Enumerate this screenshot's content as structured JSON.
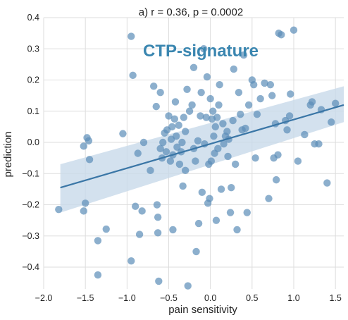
{
  "chart_data": {
    "type": "scatter",
    "title": "a) r = 0.36, p = 0.0002",
    "overlay_title": "CTP-signature",
    "xlabel": "pain sensitivity",
    "ylabel": "prediction",
    "xlim": [
      -2.0,
      1.6
    ],
    "ylim": [
      -0.47,
      0.4
    ],
    "xticks": [
      -2.0,
      -1.5,
      -1.0,
      -0.5,
      0.0,
      0.5,
      1.0,
      1.5
    ],
    "xtick_labels": [
      "−2.0",
      "−1.5",
      "−1.0",
      "−0.5",
      "0.0",
      "0.5",
      "1.0",
      "1.5"
    ],
    "yticks": [
      -0.4,
      -0.3,
      -0.2,
      -0.1,
      0.0,
      0.1,
      0.2,
      0.3,
      0.4
    ],
    "ytick_labels": [
      "−0.4",
      "−0.3",
      "−0.2",
      "−0.1",
      "0.0",
      "0.1",
      "0.2",
      "0.3",
      "0.4"
    ],
    "grid": true,
    "point_color": "#5b8db8",
    "line_color": "#3a76a6",
    "band_color": "#c8d9ea",
    "regression": {
      "x": [
        -1.8,
        1.6
      ],
      "y": [
        -0.145,
        0.12
      ],
      "ci_lower": [
        -0.225,
        0.065
      ],
      "ci_upper": [
        -0.07,
        0.18
      ]
    },
    "points": [
      {
        "x": -1.82,
        "y": -0.215
      },
      {
        "x": -1.52,
        "y": -0.012
      },
      {
        "x": -1.48,
        "y": 0.015
      },
      {
        "x": -1.46,
        "y": 0.005
      },
      {
        "x": -1.5,
        "y": -0.195
      },
      {
        "x": -1.52,
        "y": -0.22
      },
      {
        "x": -1.45,
        "y": -0.055
      },
      {
        "x": -1.35,
        "y": -0.315
      },
      {
        "x": -1.35,
        "y": -0.425
      },
      {
        "x": -1.25,
        "y": -0.278
      },
      {
        "x": -1.05,
        "y": 0.028
      },
      {
        "x": -0.95,
        "y": 0.34
      },
      {
        "x": -0.95,
        "y": -0.38
      },
      {
        "x": -0.93,
        "y": 0.215
      },
      {
        "x": -0.9,
        "y": -0.205
      },
      {
        "x": -0.87,
        "y": -0.035
      },
      {
        "x": -0.85,
        "y": -0.295
      },
      {
        "x": -0.82,
        "y": -0.22
      },
      {
        "x": -0.8,
        "y": 0.0
      },
      {
        "x": -0.72,
        "y": -0.09
      },
      {
        "x": -0.68,
        "y": 0.18
      },
      {
        "x": -0.65,
        "y": 0.115
      },
      {
        "x": -0.64,
        "y": -0.2
      },
      {
        "x": -0.63,
        "y": -0.24
      },
      {
        "x": -0.63,
        "y": -0.29
      },
      {
        "x": -0.62,
        "y": -0.445
      },
      {
        "x": -0.6,
        "y": -0.02
      },
      {
        "x": -0.6,
        "y": 0.16
      },
      {
        "x": -0.58,
        "y": -0.05
      },
      {
        "x": -0.57,
        "y": 0.0
      },
      {
        "x": -0.55,
        "y": 0.03
      },
      {
        "x": -0.53,
        "y": -0.03
      },
      {
        "x": -0.52,
        "y": 0.04
      },
      {
        "x": -0.5,
        "y": 0.085
      },
      {
        "x": -0.48,
        "y": -0.06
      },
      {
        "x": -0.47,
        "y": 0.01
      },
      {
        "x": -0.46,
        "y": 0.05
      },
      {
        "x": -0.45,
        "y": -0.04
      },
      {
        "x": -0.45,
        "y": -0.28
      },
      {
        "x": -0.43,
        "y": 0.075
      },
      {
        "x": -0.42,
        "y": 0.13
      },
      {
        "x": -0.41,
        "y": 0.02
      },
      {
        "x": -0.4,
        "y": -0.015
      },
      {
        "x": -0.38,
        "y": 0.055
      },
      {
        "x": -0.37,
        "y": -0.07
      },
      {
        "x": -0.35,
        "y": -0.03
      },
      {
        "x": -0.34,
        "y": 0.0
      },
      {
        "x": -0.33,
        "y": -0.14
      },
      {
        "x": -0.32,
        "y": 0.08
      },
      {
        "x": -0.3,
        "y": -0.09
      },
      {
        "x": -0.3,
        "y": 0.035
      },
      {
        "x": -0.28,
        "y": 0.17
      },
      {
        "x": -0.27,
        "y": -0.46
      },
      {
        "x": -0.25,
        "y": 0.1
      },
      {
        "x": -0.22,
        "y": 0.12
      },
      {
        "x": -0.2,
        "y": -0.02
      },
      {
        "x": -0.2,
        "y": 0.24
      },
      {
        "x": -0.18,
        "y": -0.06
      },
      {
        "x": -0.17,
        "y": -0.35
      },
      {
        "x": -0.15,
        "y": 0.005
      },
      {
        "x": -0.14,
        "y": -0.26
      },
      {
        "x": -0.12,
        "y": 0.085
      },
      {
        "x": -0.11,
        "y": 0.16
      },
      {
        "x": -0.1,
        "y": -0.16
      },
      {
        "x": -0.08,
        "y": 0.3
      },
      {
        "x": -0.07,
        "y": -0.005
      },
      {
        "x": -0.05,
        "y": 0.08
      },
      {
        "x": -0.04,
        "y": 0.21
      },
      {
        "x": -0.03,
        "y": -0.195
      },
      {
        "x": -0.02,
        "y": -0.07
      },
      {
        "x": -0.01,
        "y": -0.18
      },
      {
        "x": 0.0,
        "y": 0.14
      },
      {
        "x": 0.01,
        "y": -0.06
      },
      {
        "x": 0.02,
        "y": 0.075
      },
      {
        "x": 0.03,
        "y": 0.1
      },
      {
        "x": 0.04,
        "y": 0.02
      },
      {
        "x": 0.05,
        "y": -0.035
      },
      {
        "x": 0.06,
        "y": 0.05
      },
      {
        "x": 0.07,
        "y": -0.25
      },
      {
        "x": 0.08,
        "y": 0.08
      },
      {
        "x": 0.09,
        "y": -0.02
      },
      {
        "x": 0.1,
        "y": 0.12
      },
      {
        "x": 0.11,
        "y": 0.185
      },
      {
        "x": 0.13,
        "y": -0.15
      },
      {
        "x": 0.15,
        "y": 0.06
      },
      {
        "x": 0.16,
        "y": -0.005
      },
      {
        "x": 0.18,
        "y": 0.02
      },
      {
        "x": 0.2,
        "y": 0.035
      },
      {
        "x": 0.21,
        "y": -0.045
      },
      {
        "x": 0.22,
        "y": 0.01
      },
      {
        "x": 0.24,
        "y": -0.225
      },
      {
        "x": 0.25,
        "y": -0.145
      },
      {
        "x": 0.27,
        "y": 0.07
      },
      {
        "x": 0.28,
        "y": 0.235
      },
      {
        "x": 0.3,
        "y": -0.07
      },
      {
        "x": 0.32,
        "y": -0.28
      },
      {
        "x": 0.34,
        "y": 0.16
      },
      {
        "x": 0.36,
        "y": 0.09
      },
      {
        "x": 0.38,
        "y": 0.04
      },
      {
        "x": 0.4,
        "y": 0.28
      },
      {
        "x": 0.42,
        "y": 0.045
      },
      {
        "x": 0.44,
        "y": -0.225
      },
      {
        "x": 0.46,
        "y": 0.12
      },
      {
        "x": 0.5,
        "y": 0.2
      },
      {
        "x": 0.52,
        "y": 0.185
      },
      {
        "x": 0.54,
        "y": -0.05
      },
      {
        "x": 0.56,
        "y": 0.09
      },
      {
        "x": 0.6,
        "y": 0.14
      },
      {
        "x": 0.65,
        "y": 0.19
      },
      {
        "x": 0.7,
        "y": -0.18
      },
      {
        "x": 0.72,
        "y": 0.185
      },
      {
        "x": 0.74,
        "y": 0.15
      },
      {
        "x": 0.76,
        "y": -0.05
      },
      {
        "x": 0.78,
        "y": 0.06
      },
      {
        "x": 0.79,
        "y": -0.12
      },
      {
        "x": 0.81,
        "y": -0.04
      },
      {
        "x": 0.82,
        "y": 0.35
      },
      {
        "x": 0.85,
        "y": 0.345
      },
      {
        "x": 0.9,
        "y": 0.07
      },
      {
        "x": 0.92,
        "y": 0.04
      },
      {
        "x": 0.95,
        "y": 0.085
      },
      {
        "x": 0.96,
        "y": 0.155
      },
      {
        "x": 1.0,
        "y": 0.36
      },
      {
        "x": 1.05,
        "y": -0.06
      },
      {
        "x": 1.13,
        "y": 0.025
      },
      {
        "x": 1.2,
        "y": 0.12
      },
      {
        "x": 1.22,
        "y": 0.13
      },
      {
        "x": 1.25,
        "y": -0.005
      },
      {
        "x": 1.3,
        "y": -0.005
      },
      {
        "x": 1.33,
        "y": 0.105
      },
      {
        "x": 1.4,
        "y": -0.13
      },
      {
        "x": 1.45,
        "y": 0.065
      },
      {
        "x": 1.5,
        "y": 0.125
      }
    ]
  }
}
